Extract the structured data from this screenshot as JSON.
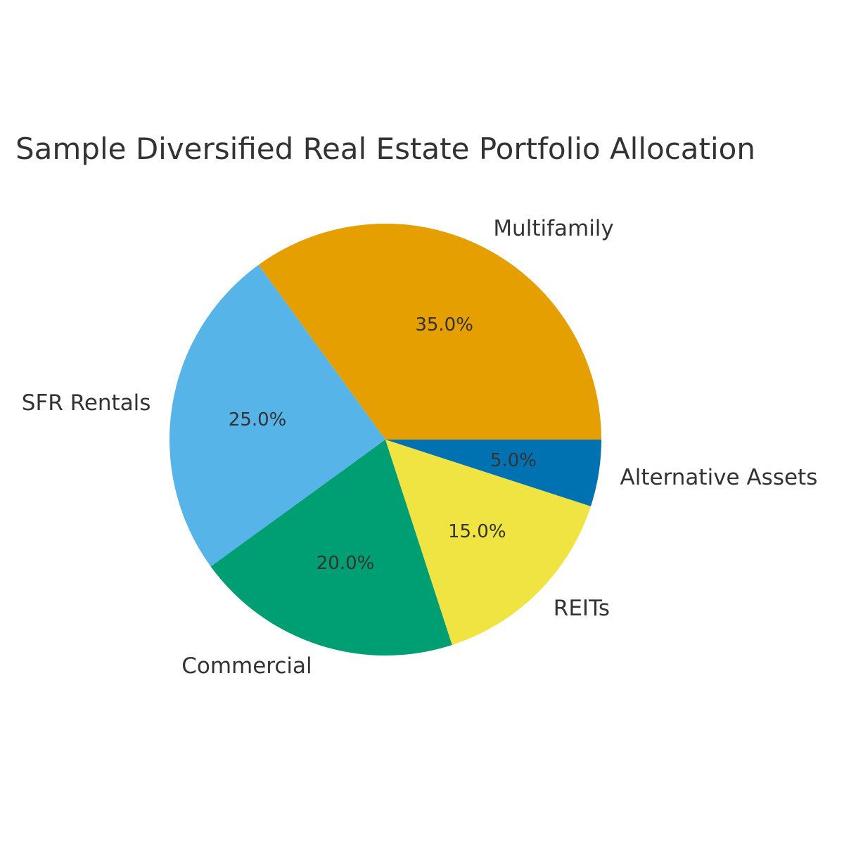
{
  "chart_data": {
    "type": "pie",
    "title": "Sample Diversified Real Estate Portfolio Allocation",
    "categories": [
      "Multifamily",
      "SFR Rentals",
      "Commercial",
      "REITs",
      "Alternative Assets"
    ],
    "values": [
      35,
      25,
      20,
      15,
      5
    ],
    "percent_labels": [
      "35.0%",
      "25.0%",
      "20.0%",
      "15.0%",
      "5.0%"
    ],
    "colors": [
      "#E69F00",
      "#56B4E9",
      "#009E73",
      "#F0E442",
      "#0072B2"
    ],
    "start_angle_deg": 0,
    "direction": "counterclockwise"
  }
}
